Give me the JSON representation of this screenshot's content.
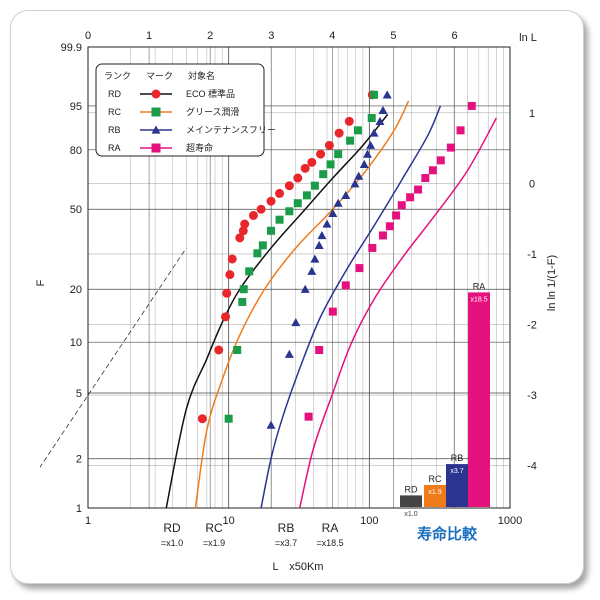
{
  "chart_data": {
    "type": "scatter",
    "title": "",
    "xlabel": "L　x50Km",
    "ylabel": "F",
    "y2label": "ln ln 1/(1-F)",
    "x2label": "ln L",
    "xscale": "log",
    "xlim": [
      1,
      1000
    ],
    "x_ticks": [
      "1",
      "10",
      "100",
      "1000"
    ],
    "y_ticks": [
      "1",
      "2",
      "5",
      "10",
      "20",
      "50",
      "80",
      "95",
      "99.9"
    ],
    "y2_ticks": [
      "1",
      "0",
      "-1",
      "-2",
      "-3",
      "-4"
    ],
    "x2_ticks": [
      "0",
      "1",
      "2",
      "3",
      "4",
      "5",
      "6"
    ],
    "x2_unit": "ln L",
    "legend": {
      "position": "top-left",
      "headers": [
        "ランク",
        "マーク",
        "対象名"
      ],
      "entries": [
        {
          "rank": "RD",
          "name": "ECO 標準品",
          "color": "#e8262b",
          "marker": "circle"
        },
        {
          "rank": "RC",
          "name": "グリース潤滑",
          "color": "#1a9c4a",
          "marker": "square"
        },
        {
          "rank": "RB",
          "name": "メインテナンスフリー",
          "color": "#2b3590",
          "marker": "triangle"
        },
        {
          "rank": "RA",
          "name": "超寿命",
          "color": "#e5117e",
          "marker": "square"
        }
      ]
    },
    "series": [
      {
        "name": "RD",
        "marker_color": "#e8262b",
        "line_color": "#111111",
        "points": [
          [
            6.5,
            3.5
          ],
          [
            8.5,
            9
          ],
          [
            9.5,
            14
          ],
          [
            9.7,
            19
          ],
          [
            10.2,
            24
          ],
          [
            10.6,
            29
          ],
          [
            12,
            37
          ],
          [
            12.7,
            40
          ],
          [
            13,
            43
          ],
          [
            15,
            47
          ],
          [
            17,
            50
          ],
          [
            20,
            54
          ],
          [
            23,
            58
          ],
          [
            27,
            62
          ],
          [
            31,
            66
          ],
          [
            35,
            71
          ],
          [
            39,
            74
          ],
          [
            45,
            78
          ],
          [
            52,
            82
          ],
          [
            61,
            87
          ],
          [
            72,
            91
          ],
          [
            105,
            97
          ]
        ]
      },
      {
        "name": "RC",
        "marker_color": "#1a9c4a",
        "line_color": "#f07b1a",
        "points": [
          [
            10,
            3.5
          ],
          [
            11.5,
            9
          ],
          [
            12.5,
            17
          ],
          [
            12.8,
            20
          ],
          [
            14,
            25
          ],
          [
            16,
            31
          ],
          [
            17.5,
            34
          ],
          [
            20,
            40
          ],
          [
            23,
            45
          ],
          [
            27,
            49
          ],
          [
            31,
            53
          ],
          [
            36,
            57
          ],
          [
            41,
            62
          ],
          [
            47,
            68
          ],
          [
            53,
            73
          ],
          [
            60,
            78
          ],
          [
            73,
            84
          ],
          [
            83,
            88
          ],
          [
            104,
            92
          ],
          [
            108,
            97
          ]
        ]
      },
      {
        "name": "RB",
        "marker_color": "#2b3590",
        "line_color": "#2b3590",
        "points": [
          [
            20,
            3.2
          ],
          [
            27,
            8.5
          ],
          [
            30,
            13
          ],
          [
            35,
            20
          ],
          [
            39,
            25
          ],
          [
            41,
            29
          ],
          [
            44,
            34
          ],
          [
            46,
            38
          ],
          [
            50,
            43
          ],
          [
            55,
            48
          ],
          [
            60,
            53
          ],
          [
            68,
            57
          ],
          [
            79,
            63
          ],
          [
            84,
            67
          ],
          [
            92,
            73
          ],
          [
            97,
            78
          ],
          [
            102,
            82
          ],
          [
            108,
            87
          ],
          [
            119,
            91
          ],
          [
            125,
            94
          ],
          [
            134,
            97
          ]
        ]
      },
      {
        "name": "RA",
        "marker_color": "#e5117e",
        "line_color": "#e5117e",
        "points": [
          [
            37,
            3.6
          ],
          [
            44,
            9
          ],
          [
            55,
            15
          ],
          [
            68,
            21
          ],
          [
            85,
            26
          ],
          [
            105,
            33
          ],
          [
            125,
            38
          ],
          [
            140,
            42
          ],
          [
            155,
            47
          ],
          [
            170,
            52
          ],
          [
            195,
            56
          ],
          [
            222,
            60
          ],
          [
            250,
            66
          ],
          [
            283,
            70
          ],
          [
            322,
            75
          ],
          [
            380,
            81
          ],
          [
            445,
            88
          ],
          [
            535,
            95
          ]
        ]
      }
    ],
    "fit_lines": [
      {
        "name": "RD",
        "color": "#111111",
        "points": [
          [
            3.6,
            1
          ],
          [
            5,
            4
          ],
          [
            7,
            8
          ],
          [
            9,
            13
          ],
          [
            12,
            20
          ],
          [
            20,
            33
          ],
          [
            35,
            50
          ],
          [
            55,
            66
          ],
          [
            90,
            82
          ],
          [
            135,
            93
          ]
        ]
      },
      {
        "name": "RC",
        "color": "#f07b1a",
        "points": [
          [
            5.8,
            1
          ],
          [
            7,
            3
          ],
          [
            9,
            6
          ],
          [
            12,
            11
          ],
          [
            18,
            20
          ],
          [
            30,
            33
          ],
          [
            55,
            50
          ],
          [
            95,
            70
          ],
          [
            150,
            88
          ],
          [
            190,
            96
          ]
        ]
      },
      {
        "name": "RB",
        "color": "#2b3590",
        "points": [
          [
            17,
            1
          ],
          [
            20,
            2
          ],
          [
            24,
            3.5
          ],
          [
            32,
            7
          ],
          [
            45,
            14
          ],
          [
            70,
            26
          ],
          [
            110,
            43
          ],
          [
            170,
            65
          ],
          [
            260,
            86
          ],
          [
            320,
            95
          ]
        ]
      },
      {
        "name": "RA",
        "color": "#e5117e",
        "points": [
          [
            32,
            1
          ],
          [
            40,
            2.3
          ],
          [
            55,
            5
          ],
          [
            75,
            10
          ],
          [
            110,
            18
          ],
          [
            175,
            30
          ],
          [
            300,
            48
          ],
          [
            500,
            70
          ],
          [
            800,
            92
          ]
        ]
      }
    ],
    "reference_line": {
      "style": "dashed",
      "color": "#333333",
      "points": [
        [
          0.42,
          1.6
        ],
        [
          5,
          33
        ]
      ]
    },
    "comparison": {
      "title": "寿命比較",
      "title_color": "#1a6fbe",
      "items": [
        {
          "rank": "RD",
          "ratio": "x1.0",
          "label": "=x1.0",
          "value": 1.0,
          "color": "#444444"
        },
        {
          "rank": "RC",
          "ratio": "x1.9",
          "label": "=x1.9",
          "value": 1.9,
          "color": "#f07b1a"
        },
        {
          "rank": "RB",
          "ratio": "x3.7",
          "label": "=x3.7",
          "value": 3.7,
          "color": "#2b3590"
        },
        {
          "rank": "RA",
          "ratio": "x18.5",
          "label": "=x18.5",
          "value": 18.5,
          "color": "#e5117e"
        }
      ]
    }
  }
}
